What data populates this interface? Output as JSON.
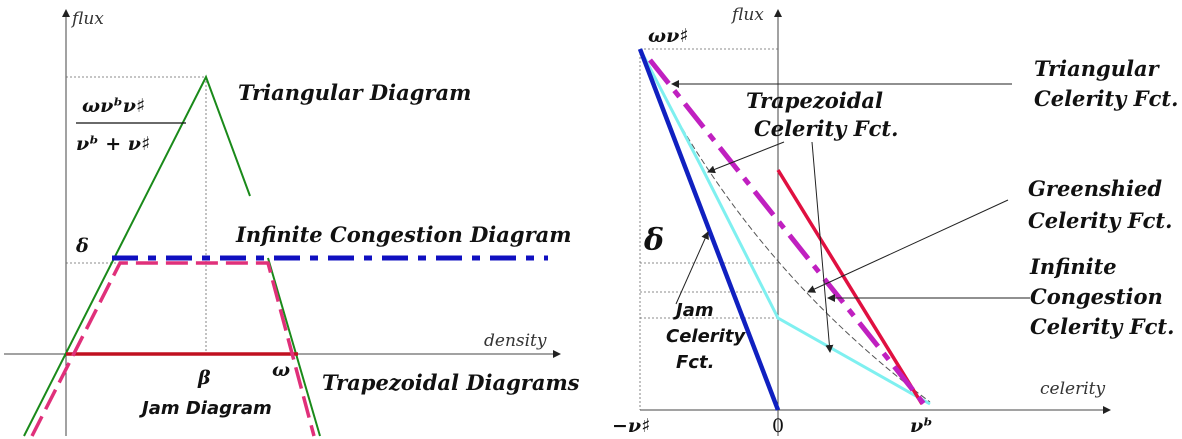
{
  "left": {
    "y_axis_label": "flux",
    "x_axis_label": "density",
    "peak_label_numerator": "ωνᵇν♯",
    "peak_label_denominator": "νᵇ + ν♯",
    "delta_label": "δ",
    "beta_label": "β",
    "omega_label": "ω",
    "triangular_label": "Triangular Diagram",
    "infinite_label": "Infinite Congestion Diagram",
    "trapezoidal_label": "Trapezoidal Diagrams",
    "jam_label": "Jam Diagram"
  },
  "right": {
    "y_axis_label": "flux",
    "x_axis_label": "celerity",
    "top_label": "ων♯",
    "delta_label": "δ",
    "neg_nu_label": "−ν♯",
    "zero_label": "0",
    "nu_flat_label": "νᵇ",
    "triangular_l1": "Triangular",
    "triangular_l2": "Celerity Fct.",
    "trapezoidal_l1": "Trapezoidal",
    "trapezoidal_l2": "Celerity Fct.",
    "greenshied_l1": "Greenshied",
    "greenshied_l2": "Celerity Fct.",
    "infinite_l1": "Infinite",
    "infinite_l2": "Congestion",
    "infinite_l3": "Celerity Fct.",
    "jam_l1": "Jam",
    "jam_l2": "Celerity",
    "jam_l3": "Fct."
  },
  "colors": {
    "triangular": "#1a8a1a",
    "infinite": "#1010c0",
    "trapezoidal": "#e0307a",
    "jam": "#c01020",
    "cyan": "#7ff0f0",
    "magenta": "#c020c0",
    "blue": "#1020c0",
    "red": "#e01040"
  }
}
